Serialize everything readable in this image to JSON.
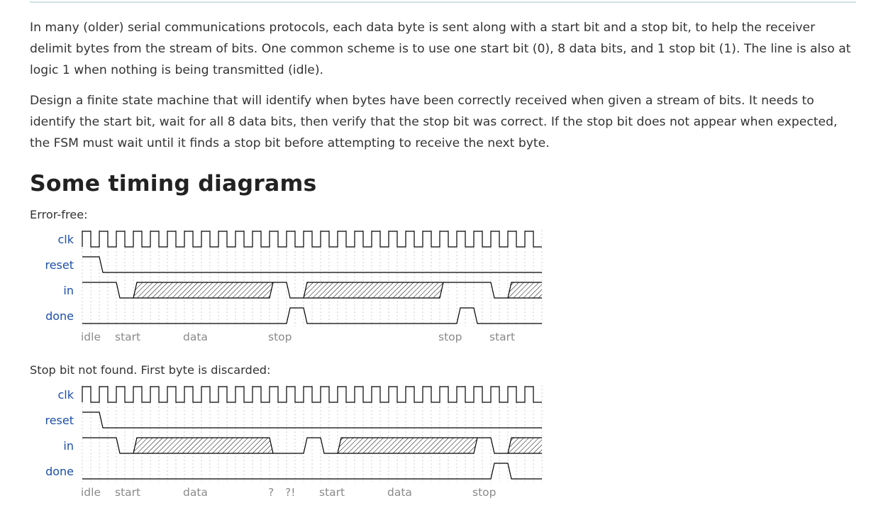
{
  "intro": {
    "paragraph1": "In many (older) serial communications protocols, each data byte is sent along with a start bit and a stop bit, to help the receiver delimit bytes from the stream of bits. One common scheme is to use one start bit (0), 8 data bits, and 1 stop bit (1). The line is also at logic 1 when nothing is being transmitted (idle).",
    "paragraph2": "Design a finite state machine that will identify when bytes have been correctly received when given a stream of bits. It needs to identify the start bit, wait for all 8 data bits, then verify that the stop bit was correct. If the stop bit does not appear when expected, the FSM must wait until it finds a stop bit before attempting to receive the next byte."
  },
  "section": {
    "heading": "Some timing diagrams"
  },
  "diagrams": [
    {
      "caption": "Error-free:",
      "signals": [
        "clk",
        "reset",
        "in",
        "done"
      ],
      "reset": [
        1,
        0,
        0,
        0,
        0,
        0,
        0,
        0,
        0,
        0,
        0,
        0,
        0,
        0,
        0,
        0,
        0,
        0,
        0,
        0,
        0,
        0,
        0,
        0,
        0,
        0,
        0
      ],
      "in": [
        "1",
        "1",
        "0",
        "x",
        "x",
        "x",
        "x",
        "x",
        "x",
        "x",
        "x",
        "1",
        "0",
        "x",
        "x",
        "x",
        "x",
        "x",
        "x",
        "x",
        "x",
        "1",
        "1",
        "1",
        "0",
        "x",
        "x"
      ],
      "done": [
        0,
        0,
        0,
        0,
        0,
        0,
        0,
        0,
        0,
        0,
        0,
        0,
        1,
        0,
        0,
        0,
        0,
        0,
        0,
        0,
        0,
        0,
        1,
        0,
        0,
        0,
        0
      ],
      "labels": [
        {
          "cycle": 0,
          "text": "idle"
        },
        {
          "cycle": 2,
          "text": "start"
        },
        {
          "cycle": 6,
          "text": "data"
        },
        {
          "cycle": 11,
          "text": "stop"
        },
        {
          "cycle": 21,
          "text": "stop"
        },
        {
          "cycle": 24,
          "text": "start"
        }
      ]
    },
    {
      "caption": "Stop bit not found. First byte is discarded:",
      "signals": [
        "clk",
        "reset",
        "in",
        "done"
      ],
      "reset": [
        1,
        0,
        0,
        0,
        0,
        0,
        0,
        0,
        0,
        0,
        0,
        0,
        0,
        0,
        0,
        0,
        0,
        0,
        0,
        0,
        0,
        0,
        0,
        0,
        0,
        0,
        0
      ],
      "in": [
        "1",
        "1",
        "0",
        "x",
        "x",
        "x",
        "x",
        "x",
        "x",
        "x",
        "x",
        "0",
        "0",
        "1",
        "0",
        "x",
        "x",
        "x",
        "x",
        "x",
        "x",
        "x",
        "x",
        "1",
        "0",
        "x",
        "x"
      ],
      "done": [
        0,
        0,
        0,
        0,
        0,
        0,
        0,
        0,
        0,
        0,
        0,
        0,
        0,
        0,
        0,
        0,
        0,
        0,
        0,
        0,
        0,
        0,
        0,
        0,
        1,
        0,
        0
      ],
      "labels": [
        {
          "cycle": 0,
          "text": "idle"
        },
        {
          "cycle": 2,
          "text": "start"
        },
        {
          "cycle": 6,
          "text": "data"
        },
        {
          "cycle": 11,
          "text": "?"
        },
        {
          "cycle": 12,
          "text": "?!"
        },
        {
          "cycle": 14,
          "text": "start"
        },
        {
          "cycle": 18,
          "text": "data"
        },
        {
          "cycle": 23,
          "text": "stop"
        }
      ]
    }
  ]
}
